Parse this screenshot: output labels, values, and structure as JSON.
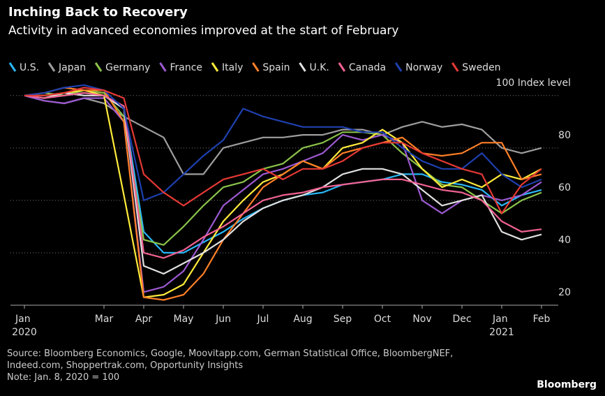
{
  "chart_data": {
    "type": "line",
    "title": "Inching Back to Recovery",
    "subtitle": "Activity in advanced economies improved at the start of February",
    "source": "Source: Bloomberg Economics, Google, Moovitapp.com, German Statistical Office, BloombergNEF, Indeed.com, Shoppertrak.com, Opportunity Insights",
    "note": "Note: Jan. 8, 2020 = 100",
    "brand": "Bloomberg",
    "categories": [
      "Jan 2020",
      null,
      null,
      null,
      "Mar",
      null,
      "Apr",
      null,
      "May",
      null,
      "Jun",
      null,
      "Jul",
      null,
      "Aug",
      null,
      "Sep",
      null,
      "Oct",
      null,
      "Nov",
      null,
      "Dec",
      null,
      "Jan 2021",
      null,
      "Feb"
    ],
    "ylim": [
      20,
      105
    ],
    "yticks": [
      20,
      40,
      60,
      80,
      {
        "value": 100,
        "label": "100 Index level"
      }
    ],
    "grid": true,
    "series": [
      {
        "name": "U.S.",
        "color": "#29b6f6",
        "values": [
          100,
          99,
          100,
          101,
          100,
          95,
          48,
          40,
          40,
          44,
          48,
          53,
          57,
          60,
          62,
          63,
          66,
          67,
          68,
          70,
          70,
          67,
          66,
          64,
          58,
          62,
          64
        ]
      },
      {
        "name": "Japan",
        "color": "#9e9e9e",
        "values": [
          100,
          98,
          97,
          99,
          97,
          92,
          88,
          84,
          70,
          70,
          80,
          82,
          84,
          84,
          85,
          85,
          87,
          87,
          85,
          88,
          90,
          88,
          89,
          87,
          80,
          78,
          80
        ]
      },
      {
        "name": "Germany",
        "color": "#8bc34a",
        "values": [
          100,
          101,
          100,
          102,
          101,
          92,
          45,
          43,
          50,
          58,
          65,
          67,
          72,
          74,
          80,
          82,
          86,
          86,
          85,
          78,
          72,
          66,
          65,
          60,
          55,
          60,
          63
        ]
      },
      {
        "name": "France",
        "color": "#9c59d1",
        "values": [
          100,
          98,
          97,
          99,
          99,
          90,
          25,
          27,
          33,
          45,
          58,
          64,
          70,
          72,
          75,
          78,
          85,
          83,
          85,
          82,
          60,
          55,
          60,
          62,
          60,
          62,
          67
        ]
      },
      {
        "name": "Italy",
        "color": "#ffeb3b",
        "values": [
          100,
          100,
          101,
          102,
          100,
          62,
          23,
          24,
          28,
          40,
          52,
          60,
          67,
          70,
          75,
          72,
          80,
          82,
          87,
          82,
          72,
          65,
          68,
          65,
          70,
          68,
          72
        ]
      },
      {
        "name": "Spain",
        "color": "#ff7f27",
        "values": [
          100,
          101,
          103,
          102,
          102,
          90,
          23,
          22,
          24,
          32,
          45,
          55,
          65,
          70,
          75,
          72,
          78,
          80,
          82,
          84,
          78,
          77,
          78,
          82,
          82,
          68,
          70
        ]
      },
      {
        "name": "U.K.",
        "color": "#e0e0e0",
        "values": [
          100,
          99,
          101,
          100,
          100,
          95,
          35,
          32,
          36,
          40,
          45,
          52,
          57,
          60,
          62,
          65,
          70,
          72,
          72,
          70,
          64,
          58,
          60,
          62,
          48,
          45,
          47
        ]
      },
      {
        "name": "Canada",
        "color": "#f06292",
        "values": [
          100,
          99,
          100,
          101,
          100,
          96,
          40,
          38,
          41,
          46,
          50,
          55,
          60,
          62,
          63,
          65,
          66,
          67,
          68,
          68,
          66,
          64,
          63,
          60,
          52,
          48,
          49
        ]
      },
      {
        "name": "Norway",
        "color": "#1e40af",
        "values": [
          100,
          101,
          103,
          104,
          102,
          95,
          60,
          63,
          70,
          77,
          83,
          95,
          92,
          90,
          88,
          88,
          88,
          86,
          86,
          80,
          75,
          72,
          72,
          78,
          70,
          65,
          68
        ]
      },
      {
        "name": "Sweden",
        "color": "#e53935",
        "values": [
          100,
          100,
          101,
          103,
          102,
          99,
          70,
          63,
          58,
          63,
          68,
          70,
          72,
          68,
          72,
          72,
          75,
          80,
          82,
          82,
          78,
          75,
          72,
          70,
          55,
          66,
          72
        ]
      }
    ]
  }
}
